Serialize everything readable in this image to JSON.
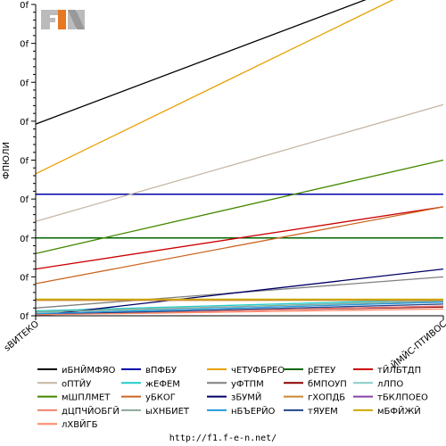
{
  "logo": {
    "text": "F1EN"
  },
  "footer": {
    "url": "http://f1.f-e-n.net/"
  },
  "chart_data": {
    "type": "line",
    "title": "",
    "ylabel": "ФПЮЛИ",
    "xlabel": "",
    "x": [
      "ѕВИТЕКО",
      "ЙМЙС-ПТИВОС"
    ],
    "ylim": [
      0,
      320
    ],
    "yticks": [
      0,
      40,
      80,
      120,
      160,
      200,
      240,
      280,
      320
    ],
    "ytick_labels": [
      "0f",
      "0f",
      "0f",
      "0f",
      "0f",
      "0f",
      "0f",
      "0f",
      "0f"
    ],
    "grid": false,
    "legend_position": "bottom",
    "series": [
      {
        "name": "иБНЙМФЯО",
        "color": "#000000",
        "values": [
          197,
          355
        ]
      },
      {
        "name": "вПФБУ",
        "color": "#0000aa",
        "values": [
          125,
          125
        ]
      },
      {
        "name": "чЕТУФБРЕО",
        "color": "#e8a000",
        "values": [
          146,
          350
        ]
      },
      {
        "name": "рЕТЕУ",
        "color": "#006600",
        "values": [
          80,
          80
        ]
      },
      {
        "name": "тЙЛБТДП",
        "color": "#cc0000",
        "values": [
          48,
          112
        ]
      },
      {
        "name": "оПТЙУ",
        "color": "#c4b6a6",
        "values": [
          97,
          217
        ]
      },
      {
        "name": "жЕФЕМ",
        "color": "#22cccc",
        "values": [
          5,
          17
        ]
      },
      {
        "name": "уФТПМ",
        "color": "#808080",
        "values": [
          8,
          40
        ]
      },
      {
        "name": "бМПОУП",
        "color": "#8b0000",
        "values": [
          2,
          9
        ]
      },
      {
        "name": "лЛПО",
        "color": "#88cccc",
        "values": [
          3,
          16
        ]
      },
      {
        "name": "мШПЛМЕТ",
        "color": "#448800",
        "values": [
          64,
          160
        ]
      },
      {
        "name": "уБКОГ",
        "color": "#cc6622",
        "values": [
          33,
          112
        ]
      },
      {
        "name": "зБУМЙ",
        "color": "#000066",
        "values": [
          0,
          48
        ]
      },
      {
        "name": "гХОПДБ",
        "color": "#cc8833",
        "values": [
          16,
          16
        ]
      },
      {
        "name": "тБКЛПОЕО",
        "color": "#8844aa",
        "values": [
          1,
          10
        ]
      },
      {
        "name": "дЦПЧЙОБГЙ",
        "color": "#f08070",
        "values": [
          1,
          10
        ]
      },
      {
        "name": "ыХНБИЕТ",
        "color": "#88aa99",
        "values": [
          4,
          15
        ]
      },
      {
        "name": "нБЪЕРЙО",
        "color": "#2299dd",
        "values": [
          2,
          14
        ]
      },
      {
        "name": "тЯУЕМ",
        "color": "#224488",
        "values": [
          1,
          12
        ]
      },
      {
        "name": "мБФЙЖЙ",
        "color": "#ccaa00",
        "values": [
          17,
          17
        ]
      },
      {
        "name": "лХВЙГБ",
        "color": "#ff8866",
        "values": [
          1,
          7
        ]
      }
    ]
  }
}
